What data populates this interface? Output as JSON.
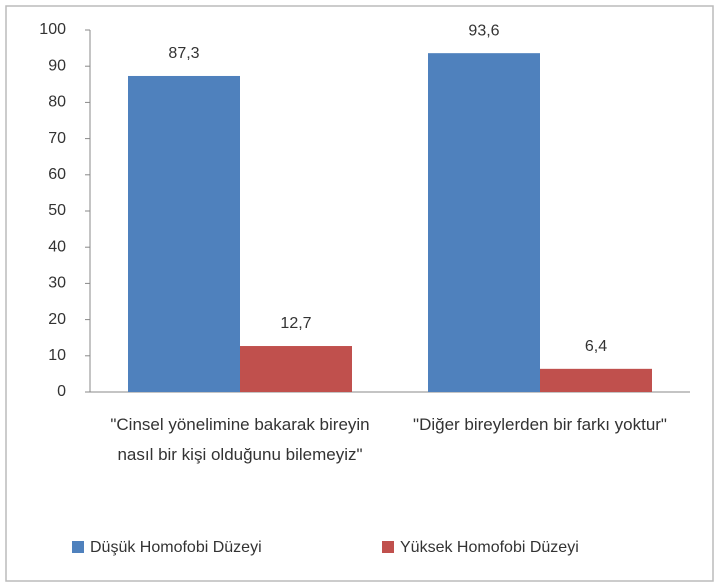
{
  "chart_data": {
    "type": "bar",
    "categories": [
      "\"Cinsel yönelimine bakarak bireyin nasıl bir kişi olduğunu bilemeyiz\"",
      "\"Diğer bireylerden bir farkı yoktur\""
    ],
    "series": [
      {
        "name": "Düşük Homofobi Düzeyi",
        "color": "#4f81bd",
        "values": [
          87.3,
          93.6
        ],
        "value_labels": [
          "87,3",
          "93,6"
        ]
      },
      {
        "name": "Yüksek Homofobi Düzeyi",
        "color": "#c0504d",
        "values": [
          12.7,
          6.4
        ],
        "value_labels": [
          "12,7",
          "6,4"
        ]
      }
    ],
    "ylim": [
      0,
      100
    ],
    "yticks": [
      0,
      10,
      20,
      30,
      40,
      50,
      60,
      70,
      80,
      90,
      100
    ],
    "grid": false,
    "legend": "bottom"
  }
}
